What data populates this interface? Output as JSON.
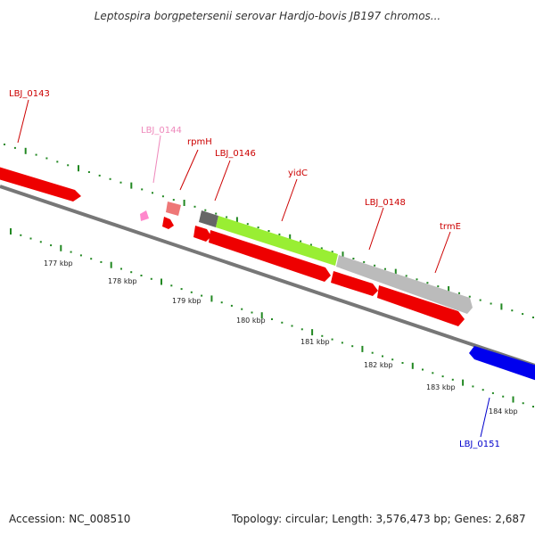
{
  "title": "Leptospira borgpetersenii serovar Hardjo-bovis JB197 chromos...",
  "footer": {
    "accession": "Accession: NC_008510",
    "summary": "Topology: circular; Length: 3,576,473 bp; Genes: 2,687"
  },
  "kbp_labels": [
    "177 kbp",
    "178 kbp",
    "179 kbp",
    "180 kbp",
    "181 kbp",
    "182 kbp",
    "183 kbp",
    "184 kbp"
  ],
  "gene_labels": [
    {
      "text": "LBJ_0143",
      "color": "#cc0000"
    },
    {
      "text": "LBJ_0144",
      "color": "#ee88bb"
    },
    {
      "text": "rpmH",
      "color": "#cc0000"
    },
    {
      "text": "LBJ_0146",
      "color": "#cc0000"
    },
    {
      "text": "yidC",
      "color": "#cc0000"
    },
    {
      "text": "LBJ_0148",
      "color": "#cc0000"
    },
    {
      "text": "trmE",
      "color": "#cc0000"
    },
    {
      "text": "LBJ_0151",
      "color": "#0000cc"
    }
  ],
  "colors": {
    "cds_red": "#ee0000",
    "cds_pink": "#ff88cc",
    "cds_salmon": "#ee7777",
    "cds_green": "#99ee33",
    "cds_gray": "#bbbbbb",
    "cds_blue": "#0000ee",
    "backbone": "#777777",
    "tick": "#228822"
  }
}
